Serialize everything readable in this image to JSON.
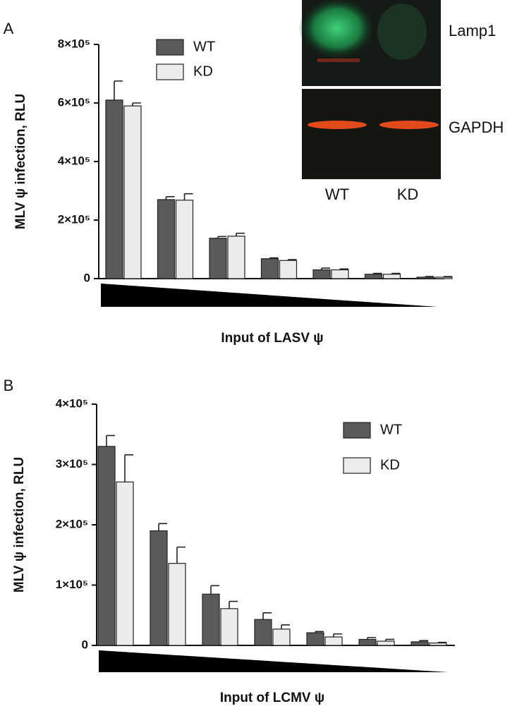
{
  "chart_data": [
    {
      "type": "bar",
      "panel_label": "A",
      "x_label": "Input of LASV ψ",
      "y_label": "MLV ψ infection, RLU",
      "categories": [
        null,
        null,
        null,
        null,
        null,
        null,
        null
      ],
      "series": [
        {
          "name": "WT",
          "color": "#5a5a5a",
          "values": [
            610000,
            270000,
            138000,
            68000,
            30000,
            15000,
            5000
          ],
          "errors": [
            65000,
            10000,
            6000,
            3000,
            6000,
            3000,
            2000
          ]
        },
        {
          "name": "KD",
          "color": "#ececec",
          "values": [
            590000,
            268000,
            145000,
            62000,
            30000,
            15000,
            5000
          ],
          "errors": [
            10000,
            22000,
            10000,
            3000,
            3000,
            3000,
            2000
          ]
        }
      ],
      "ylim": [
        0,
        800000
      ],
      "yticks": [
        0,
        {
          "value": 200000,
          "label": "2×10⁵"
        },
        {
          "value": 400000,
          "label": "4×10⁵"
        },
        {
          "value": 600000,
          "label": "6×10⁵"
        },
        {
          "value": 800000,
          "label": "8×10⁵"
        }
      ],
      "inset": {
        "bands": [
          "Lamp1",
          "GAPDH"
        ],
        "lanes": [
          "WT",
          "KD"
        ]
      }
    },
    {
      "type": "bar",
      "panel_label": "B",
      "x_label": "Input of LCMV ψ",
      "y_label": "MLV ψ infection, RLU",
      "categories": [
        null,
        null,
        null,
        null,
        null,
        null,
        null
      ],
      "series": [
        {
          "name": "WT",
          "color": "#5a5a5a",
          "values": [
            330000,
            190000,
            85000,
            43000,
            21000,
            10000,
            6000
          ],
          "errors": [
            18000,
            12000,
            14000,
            11000,
            2000,
            3000,
            2000
          ]
        },
        {
          "name": "KD",
          "color": "#ececec",
          "values": [
            271000,
            136000,
            61000,
            27000,
            14000,
            7000,
            4000
          ],
          "errors": [
            45000,
            27000,
            12000,
            7000,
            5000,
            3000,
            1000
          ]
        }
      ],
      "ylim": [
        0,
        400000
      ],
      "yticks": [
        0,
        {
          "value": 100000,
          "label": "1×10⁵"
        },
        {
          "value": 200000,
          "label": "2×10⁵"
        },
        {
          "value": 300000,
          "label": "3×10⁵"
        },
        {
          "value": 400000,
          "label": "4×10⁵"
        }
      ]
    }
  ]
}
